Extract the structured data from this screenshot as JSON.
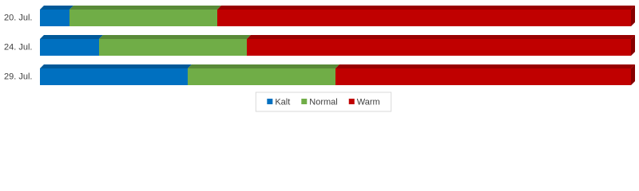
{
  "chart_data": {
    "type": "stacked-bar-horizontal",
    "categories": [
      "20. Jul.",
      "24. Jul.",
      "29. Jul."
    ],
    "series": [
      {
        "name": "Kalt",
        "color": "#0070c0",
        "values": [
          5,
          10,
          25
        ]
      },
      {
        "name": "Normal",
        "color": "#70ad47",
        "values": [
          25,
          25,
          25
        ]
      },
      {
        "name": "Warm",
        "color": "#c00000",
        "values": [
          70,
          65,
          50
        ]
      }
    ]
  }
}
